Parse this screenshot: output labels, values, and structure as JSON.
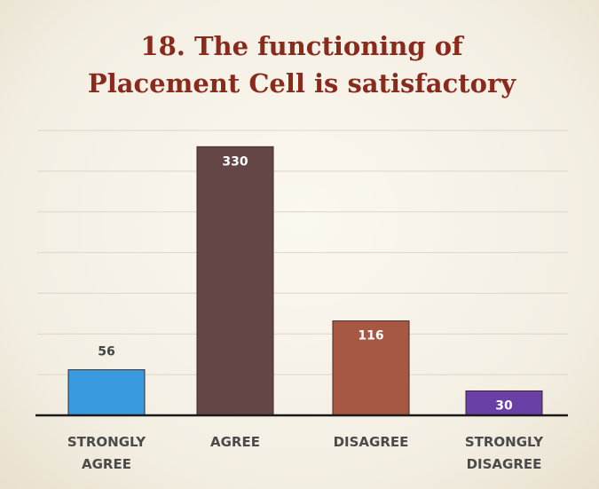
{
  "chart_data": {
    "type": "bar",
    "title": [
      "18. The functioning of",
      "Placement Cell is satisfactory"
    ],
    "categories": [
      "STRONGLY AGREE",
      "AGREE",
      "DISAGREE",
      "STRONGLY DISAGREE"
    ],
    "values": [
      56,
      330,
      116,
      30
    ],
    "colors": [
      "#3a9ae0",
      "#654646",
      "#a65843",
      "#6a3fa6"
    ],
    "ylim": [
      0,
      350
    ],
    "yticks": [
      0,
      50,
      100,
      150,
      200,
      250,
      300,
      350
    ],
    "grid": true
  }
}
